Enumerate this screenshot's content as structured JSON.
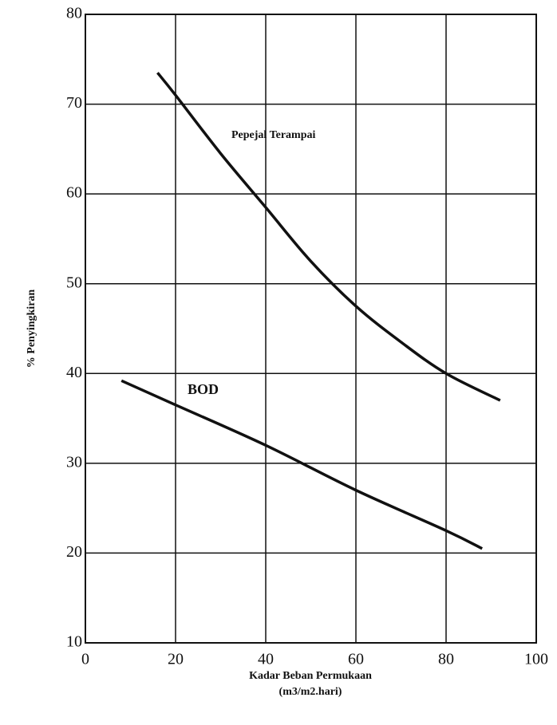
{
  "chart_data": {
    "type": "line",
    "xlabel": "Kadar Beban Permukaan",
    "xlabel_unit": "(m3/m2.hari)",
    "ylabel": "% Penyingkiran",
    "xlim": [
      0,
      100
    ],
    "xticks": [
      0,
      20,
      40,
      60,
      80,
      100
    ],
    "ylim": [
      10,
      80
    ],
    "yticks": [
      10,
      20,
      30,
      40,
      50,
      60,
      70,
      80
    ],
    "grid": true,
    "series": [
      {
        "name": "Pepejal Terampai",
        "color": "#111111",
        "x": [
          16,
          20,
          30,
          40,
          50,
          60,
          70,
          80,
          92
        ],
        "values": [
          73.5,
          71,
          64.5,
          58.5,
          52.5,
          47.5,
          43.5,
          40,
          37
        ]
      },
      {
        "name": "BOD",
        "color": "#111111",
        "x": [
          8,
          20,
          40,
          60,
          80,
          88
        ],
        "values": [
          39.2,
          36.5,
          32,
          27,
          22.5,
          20.5
        ]
      }
    ]
  }
}
